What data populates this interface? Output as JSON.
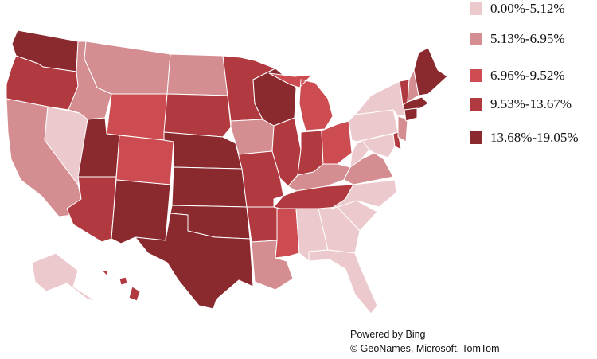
{
  "map": {
    "legend": [
      {
        "label": "0.00%-5.12%",
        "color": "#ebc9cc"
      },
      {
        "label": "5.13%-6.95%",
        "color": "#d48d90"
      },
      {
        "label": "6.96%-9.52%",
        "color": "#cc4c51"
      },
      {
        "label": "9.53%-13.67%",
        "color": "#b03a40"
      },
      {
        "label": "13.68%-19.05%",
        "color": "#8a2a2f"
      }
    ],
    "attribution": {
      "line1": "Powered by Bing",
      "line2": "© GeoNames, Microsoft, TomTom"
    },
    "states": {
      "WA": 4,
      "OR": 3,
      "CA": 1,
      "NV": 0,
      "ID": 1,
      "MT": 1,
      "WY": 2,
      "UT": 4,
      "AZ": 3,
      "CO": 2,
      "NM": 4,
      "ND": 1,
      "SD": 3,
      "NE": 4,
      "KS": 4,
      "OK": 4,
      "TX": 4,
      "MN": 3,
      "IA": 1,
      "MO": 3,
      "AR": 3,
      "LA": 1,
      "WI": 4,
      "IL": 3,
      "MI": 2,
      "IN": 3,
      "OH": 2,
      "KY": 1,
      "TN": 3,
      "MS": 2,
      "AL": 0,
      "GA": 0,
      "FL": 0,
      "SC": 0,
      "NC": 0,
      "VA": 1,
      "WV": 0,
      "PA": 0,
      "NY": 0,
      "VT": 3,
      "NH": 1,
      "ME": 4,
      "MA": 4,
      "CT": 4,
      "NJ": 1,
      "DE": 3,
      "MD": 0,
      "AK": 0,
      "HI": 3
    }
  }
}
